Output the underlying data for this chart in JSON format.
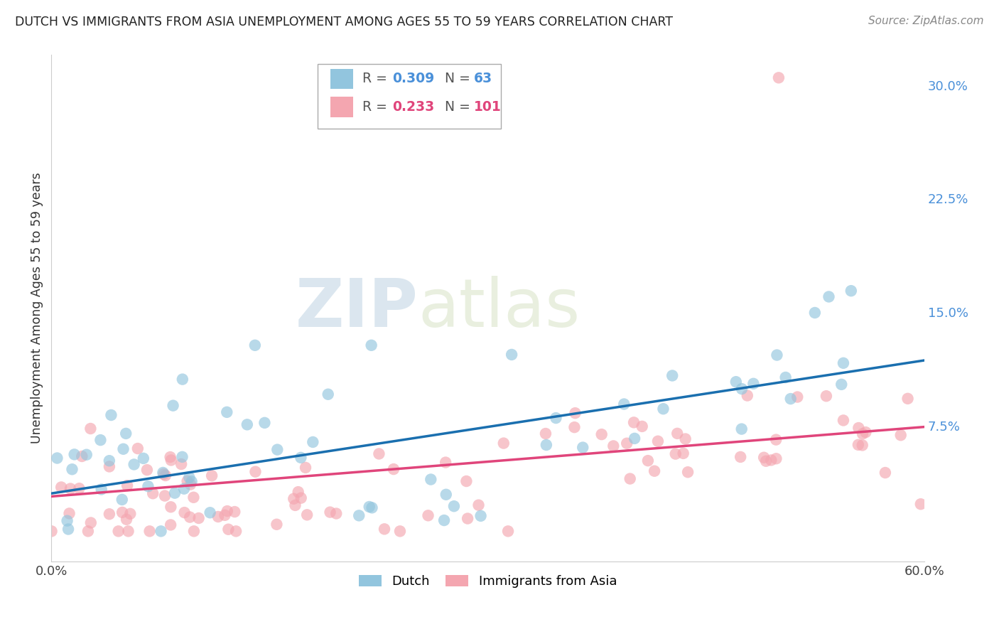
{
  "title": "DUTCH VS IMMIGRANTS FROM ASIA UNEMPLOYMENT AMONG AGES 55 TO 59 YEARS CORRELATION CHART",
  "source": "Source: ZipAtlas.com",
  "ylabel": "Unemployment Among Ages 55 to 59 years",
  "xlim": [
    0.0,
    0.6
  ],
  "ylim": [
    -0.015,
    0.32
  ],
  "dutch_R": 0.309,
  "dutch_N": 63,
  "asian_R": 0.233,
  "asian_N": 101,
  "dutch_color": "#92c5de",
  "asian_color": "#f4a6b0",
  "dutch_line_color": "#1a6faf",
  "asian_line_color": "#e0457b",
  "background_color": "#ffffff",
  "grid_color": "#cccccc",
  "dutch_line_start_y": 0.03,
  "dutch_line_end_y": 0.118,
  "asian_line_start_y": 0.028,
  "asian_line_end_y": 0.074
}
